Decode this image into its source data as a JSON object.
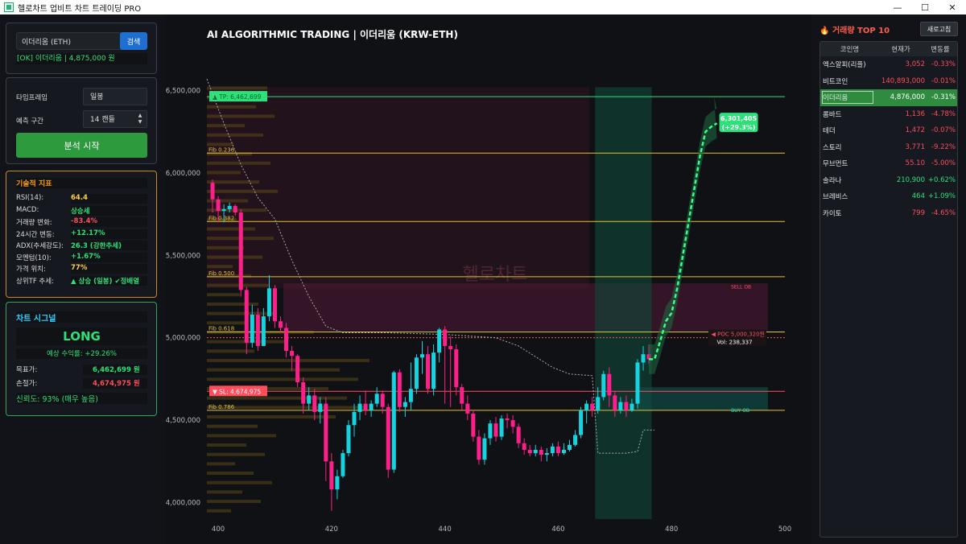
{
  "window": {
    "title": "헬로차트 업비트 차트 트레이딩 PRO",
    "minimize": "—",
    "maximize": "☐",
    "close": "✕"
  },
  "search": {
    "value": "이더리움 (ETH)",
    "button": "검색",
    "status": "[OK] 이더리움 | 4,875,000 원"
  },
  "settings": {
    "timeframe_label": "타임프레임",
    "timeframe_value": "일봉",
    "predict_label": "예측 구간",
    "predict_value": "14 캔들",
    "start_button": "분석 시작"
  },
  "indicators": {
    "title": "기술적 지표",
    "rows": [
      {
        "k": "RSI(14):",
        "v": "64.4",
        "color": "#ffd23f"
      },
      {
        "k": "MACD:",
        "v": "상승세",
        "color": "#2ee07a"
      },
      {
        "k": "거래량 변화:",
        "v": "-83.4%",
        "color": "#ff4d5e"
      },
      {
        "k": "24시간 변동:",
        "v": "+12.17%",
        "color": "#2ee07a"
      },
      {
        "k": "ADX(추세강도):",
        "v": "26.3 (강한추세)",
        "color": "#2ee07a"
      },
      {
        "k": "모멘텀(10):",
        "v": "+1.67%",
        "color": "#2ee07a"
      },
      {
        "k": "가격 위치:",
        "v": "77%",
        "color": "#ffd23f"
      },
      {
        "k": "상위TF 추세:",
        "v": "▲ 상승 (일봉) ✔정배열",
        "color": "#2ee07a"
      }
    ]
  },
  "signal": {
    "title": "차트 시그널",
    "direction": "LONG",
    "expected": "예상 수익률: +29.26%",
    "target_label": "목표가:",
    "target_value": "6,462,699 원",
    "stop_label": "손절가:",
    "stop_value": "4,674,975 원",
    "confidence": "신뢰도: 93% (매우 높음)"
  },
  "chart_data": {
    "type": "candlestick",
    "title": "AI ALGORITHMIC TRADING | 이더리움 (KRW-ETH)",
    "watermark": "헬로차트",
    "x_ticks": [
      400,
      420,
      440,
      460,
      480,
      500
    ],
    "y_ticks": [
      "4,000,000",
      "4,500,000",
      "5,000,000",
      "5,500,000",
      "6,000,000",
      "6,500,000"
    ],
    "x_range": [
      398,
      500
    ],
    "y_range": [
      3900000,
      6600000
    ],
    "fib_levels": [
      {
        "label": "Fib 0.236",
        "value": 6120000
      },
      {
        "label": "Fib 0.382",
        "value": 5705000
      },
      {
        "label": "Fib 0.500",
        "value": 5370000
      },
      {
        "label": "Fib 0.618",
        "value": 5035000
      },
      {
        "label": "Fib 0.786",
        "value": 4560000
      }
    ],
    "tp": {
      "label": "▲ TP: 6,462,699",
      "value": 6462699
    },
    "sl": {
      "label": "▼ SL: 4,674,975",
      "value": 4674975
    },
    "poc": {
      "label": "◀ POC 5,000,320원",
      "vol": "Vol: 238,337",
      "value": 5000320
    },
    "sell_ob": "SELL OB",
    "buy_ob": "BUY OB",
    "forecast_label": [
      "6,301,405",
      "(+29.3%)"
    ],
    "candles": [
      [
        399,
        5940000,
        5840000,
        5960000,
        5760000
      ],
      [
        400,
        5840000,
        5770000,
        5860000,
        5700000
      ],
      [
        401,
        5770000,
        5780000,
        5810000,
        5700000
      ],
      [
        402,
        5780000,
        5800000,
        5820000,
        5760000
      ],
      [
        403,
        5800000,
        5760000,
        5810000,
        5740000
      ],
      [
        404,
        5760000,
        5290000,
        5780000,
        5250000
      ],
      [
        405,
        5290000,
        4970000,
        5310000,
        4900000
      ],
      [
        406,
        4970000,
        5140000,
        5200000,
        4940000
      ],
      [
        407,
        5140000,
        4950000,
        5180000,
        4920000
      ],
      [
        408,
        4950000,
        5130000,
        5180000,
        4950000
      ],
      [
        409,
        5130000,
        5300000,
        5380000,
        5100000
      ],
      [
        410,
        5300000,
        5100000,
        5320000,
        5060000
      ],
      [
        411,
        5100000,
        5060000,
        5130000,
        5030000
      ],
      [
        412,
        5060000,
        4920000,
        5090000,
        4880000
      ],
      [
        413,
        4920000,
        4890000,
        4950000,
        4800000
      ],
      [
        414,
        4890000,
        4730000,
        4900000,
        4700000
      ],
      [
        415,
        4730000,
        4600000,
        4760000,
        4540000
      ],
      [
        416,
        4600000,
        4650000,
        4700000,
        4560000
      ],
      [
        417,
        4650000,
        4550000,
        4690000,
        4500000
      ],
      [
        418,
        4550000,
        4600000,
        4640000,
        4480000
      ],
      [
        419,
        4600000,
        4250000,
        4640000,
        4130000
      ],
      [
        420,
        4250000,
        4080000,
        4300000,
        3950000
      ],
      [
        421,
        4080000,
        4160000,
        4200000,
        4020000
      ],
      [
        422,
        4160000,
        4300000,
        4320000,
        4150000
      ],
      [
        423,
        4300000,
        4470000,
        4500000,
        4280000
      ],
      [
        424,
        4470000,
        4550000,
        4600000,
        4400000
      ],
      [
        425,
        4550000,
        4600000,
        4650000,
        4500000
      ],
      [
        426,
        4600000,
        4560000,
        4680000,
        4530000
      ],
      [
        427,
        4560000,
        4600000,
        4620000,
        4520000
      ],
      [
        428,
        4600000,
        4660000,
        4700000,
        4580000
      ],
      [
        429,
        4660000,
        4580000,
        4680000,
        4540000
      ],
      [
        430,
        4580000,
        4200000,
        4600000,
        4150000
      ],
      [
        431,
        4200000,
        4790000,
        4800000,
        4180000
      ],
      [
        432,
        4790000,
        4580000,
        4810000,
        4550000
      ],
      [
        433,
        4580000,
        4610000,
        4640000,
        4520000
      ],
      [
        434,
        4610000,
        4690000,
        4850000,
        4560000
      ],
      [
        435,
        4690000,
        4880000,
        4900000,
        4660000
      ],
      [
        436,
        4880000,
        4900000,
        4980000,
        4780000
      ],
      [
        437,
        4900000,
        4690000,
        4950000,
        4660000
      ],
      [
        438,
        4690000,
        4910000,
        4960000,
        4650000
      ],
      [
        439,
        4910000,
        5050000,
        5060000,
        4850000
      ],
      [
        440,
        5050000,
        4950000,
        5070000,
        4600000
      ],
      [
        441,
        4950000,
        4930000,
        5010000,
        4580000
      ],
      [
        442,
        4930000,
        4700000,
        4960000,
        4650000
      ],
      [
        443,
        4700000,
        4600000,
        4720000,
        4560000
      ],
      [
        444,
        4600000,
        4540000,
        4650000,
        4500000
      ],
      [
        445,
        4540000,
        4400000,
        4560000,
        4370000
      ],
      [
        446,
        4400000,
        4260000,
        4440000,
        4230000
      ],
      [
        447,
        4260000,
        4390000,
        4420000,
        4230000
      ],
      [
        448,
        4390000,
        4480000,
        4500000,
        4350000
      ],
      [
        449,
        4480000,
        4400000,
        4520000,
        4370000
      ],
      [
        450,
        4400000,
        4510000,
        4530000,
        4380000
      ],
      [
        451,
        4510000,
        4500000,
        4540000,
        4450000
      ],
      [
        452,
        4500000,
        4460000,
        4530000,
        4420000
      ],
      [
        453,
        4460000,
        4360000,
        4480000,
        4330000
      ],
      [
        454,
        4360000,
        4320000,
        4390000,
        4290000
      ],
      [
        455,
        4320000,
        4300000,
        4350000,
        4280000
      ],
      [
        456,
        4300000,
        4320000,
        4350000,
        4280000
      ],
      [
        457,
        4320000,
        4290000,
        4340000,
        4250000
      ],
      [
        458,
        4290000,
        4300000,
        4330000,
        4250000
      ],
      [
        459,
        4300000,
        4340000,
        4360000,
        4280000
      ],
      [
        460,
        4340000,
        4300000,
        4370000,
        4280000
      ],
      [
        461,
        4300000,
        4320000,
        4360000,
        4290000
      ],
      [
        462,
        4320000,
        4350000,
        4380000,
        4310000
      ],
      [
        463,
        4350000,
        4410000,
        4440000,
        4340000
      ],
      [
        464,
        4410000,
        4560000,
        4580000,
        4390000
      ],
      [
        465,
        4560000,
        4600000,
        4620000,
        4480000
      ],
      [
        466,
        4600000,
        4560000,
        4640000,
        4520000
      ],
      [
        467,
        4560000,
        4640000,
        4700000,
        4540000
      ],
      [
        468,
        4640000,
        4780000,
        4800000,
        4620000
      ],
      [
        469,
        4780000,
        4650000,
        4820000,
        4580000
      ],
      [
        470,
        4650000,
        4560000,
        4680000,
        4520000
      ],
      [
        471,
        4560000,
        4610000,
        4640000,
        4540000
      ],
      [
        472,
        4610000,
        4560000,
        4650000,
        4520000
      ],
      [
        473,
        4560000,
        4600000,
        4630000,
        4550000
      ],
      [
        474,
        4600000,
        4850000,
        4870000,
        4570000
      ],
      [
        475,
        4850000,
        4900000,
        4950000,
        4800000
      ],
      [
        476,
        4900000,
        4870000,
        4960000,
        4840000
      ]
    ],
    "forecast": [
      [
        476,
        4870000
      ],
      [
        477,
        4870000
      ],
      [
        478,
        4980000
      ],
      [
        479,
        5100000
      ],
      [
        480,
        5150000
      ],
      [
        481,
        5300000
      ],
      [
        482,
        5500000
      ],
      [
        483,
        5700000
      ],
      [
        484,
        5900000
      ],
      [
        485,
        6100000
      ],
      [
        486,
        6250000
      ],
      [
        487,
        6280000
      ],
      [
        488,
        6301405
      ]
    ]
  },
  "top10": {
    "title": "거래량 TOP 10",
    "refresh": "새로고침",
    "headers": [
      "코인명",
      "현재가",
      "변동률"
    ],
    "rows": [
      {
        "name": "엑스알피(리플)",
        "price": "3,052",
        "change": "-0.33%",
        "up": false
      },
      {
        "name": "비트코인",
        "price": "140,893,000",
        "change": "-0.01%",
        "up": false
      },
      {
        "name": "이더리움",
        "price": "4,876,000",
        "change": "-0.31%",
        "up": false,
        "selected": true
      },
      {
        "name": "롬바드",
        "price": "1,136",
        "change": "-4.78%",
        "up": false
      },
      {
        "name": "테더",
        "price": "1,472",
        "change": "-0.07%",
        "up": false
      },
      {
        "name": "스토리",
        "price": "3,771",
        "change": "-9.22%",
        "up": false
      },
      {
        "name": "무브먼트",
        "price": "55.10",
        "change": "-5.00%",
        "up": false
      },
      {
        "name": "솔라나",
        "price": "210,900",
        "change": "+0.62%",
        "up": true
      },
      {
        "name": "브레비스",
        "price": "464",
        "change": "+1.09%",
        "up": true
      },
      {
        "name": "카이토",
        "price": "799",
        "change": "-4.65%",
        "up": false
      }
    ]
  }
}
